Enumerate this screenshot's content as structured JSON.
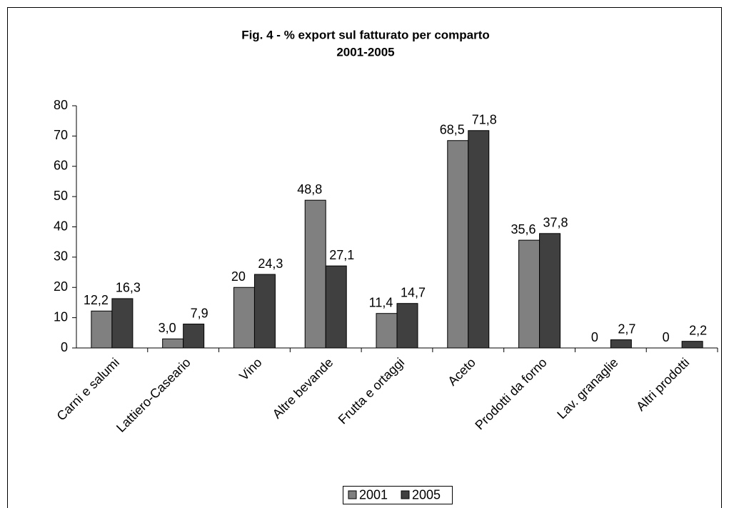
{
  "chart_data": {
    "type": "bar",
    "title": "Fig. 4 - % export sul fatturato per comparto",
    "subtitle": "2001-2005",
    "categories": [
      "Carni e salumi",
      "Lattiero-Caseario",
      "Vino",
      "Altre bevande",
      "Frutta e ortaggi",
      "Aceto",
      "Prodotti da forno",
      "Lav. granaglie",
      "Altri prodotti"
    ],
    "series": [
      {
        "name": "2001",
        "color": "#808080",
        "values": [
          12.2,
          3.0,
          20,
          48.8,
          11.4,
          68.5,
          35.6,
          0,
          0
        ],
        "value_labels": [
          "12,2",
          "3,0",
          "20",
          "48,8",
          "11,4",
          "68,5",
          "35,6",
          "0",
          "0"
        ]
      },
      {
        "name": "2005",
        "color": "#404040",
        "values": [
          16.3,
          7.9,
          24.3,
          27.1,
          14.7,
          71.8,
          37.8,
          2.7,
          2.2
        ],
        "value_labels": [
          "16,3",
          "7,9",
          "24,3",
          "27,1",
          "14,7",
          "71,8",
          "37,8",
          "2,7",
          "2,2"
        ]
      }
    ],
    "ylim": [
      0,
      80
    ],
    "yticks": [
      0,
      10,
      20,
      30,
      40,
      50,
      60,
      70,
      80
    ],
    "grid": false,
    "legend": "bottom"
  }
}
